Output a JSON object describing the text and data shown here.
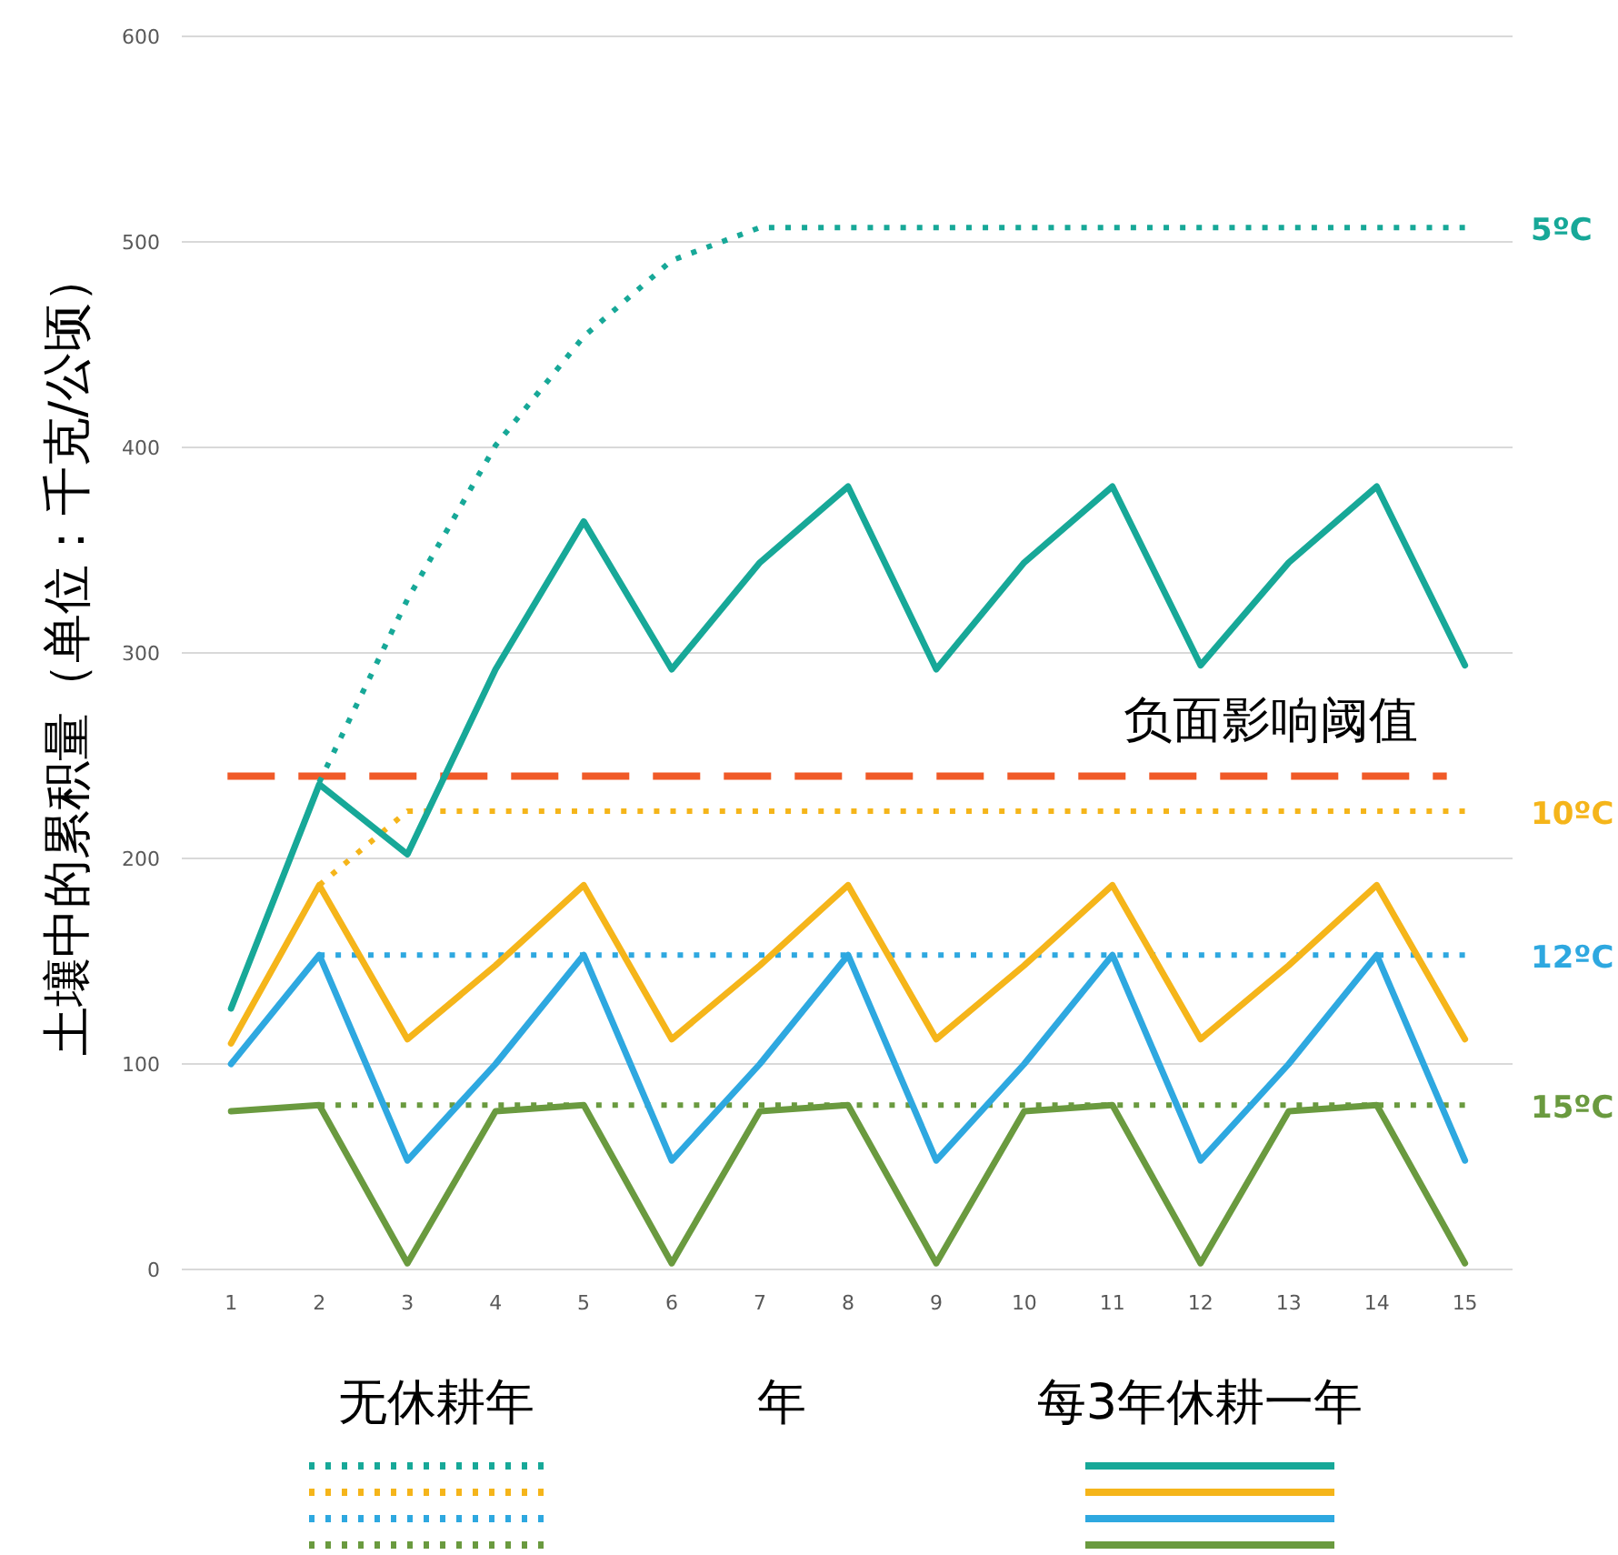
{
  "chart_data": {
    "type": "line",
    "xlabel": "年",
    "ylabel": "土壤中的累积量（单位：千克/公顷）",
    "x": [
      1,
      2,
      3,
      4,
      5,
      6,
      7,
      8,
      9,
      10,
      11,
      12,
      13,
      14,
      15
    ],
    "xlim": [
      0.44,
      15.54
    ],
    "xticks": [
      1,
      2,
      3,
      4,
      5,
      6,
      7,
      8,
      9,
      10,
      11,
      12,
      13,
      14,
      15
    ],
    "ylim": [
      0,
      600
    ],
    "yticks": [
      0,
      100,
      200,
      300,
      400,
      500,
      600
    ],
    "grid": "y",
    "marker": "none",
    "series": [
      {
        "name": "5ºC",
        "color": "#17a898",
        "line_style": "dotted",
        "values": [
          null,
          237,
          326,
          401,
          454,
          491,
          507,
          507,
          507,
          507,
          507,
          507,
          507,
          507,
          507
        ]
      },
      {
        "name": "10ºC",
        "color": "#f5b51a",
        "line_style": "dotted",
        "values": [
          null,
          187,
          223,
          223,
          223,
          223,
          223,
          223,
          223,
          223,
          223,
          223,
          223,
          223,
          223
        ]
      },
      {
        "name": "12ºC",
        "color": "#2ea8e0",
        "line_style": "dotted",
        "values": [
          null,
          153,
          153,
          153,
          153,
          153,
          153,
          153,
          153,
          153,
          153,
          153,
          153,
          153,
          153
        ]
      },
      {
        "name": "15ºC",
        "color": "#6a9a3f",
        "line_style": "dotted",
        "values": [
          null,
          80,
          80,
          80,
          80,
          80,
          80,
          80,
          80,
          80,
          80,
          80,
          80,
          80,
          80
        ]
      },
      {
        "color": "#17a898",
        "line_style": "solid",
        "values": [
          127,
          236,
          202,
          292,
          364,
          292,
          344,
          381,
          292,
          344,
          381,
          294,
          344,
          381,
          294
        ]
      },
      {
        "color": "#f5b51a",
        "line_style": "solid",
        "values": [
          110,
          187,
          112,
          148,
          187,
          112,
          148,
          187,
          112,
          148,
          187,
          112,
          148,
          187,
          112
        ]
      },
      {
        "color": "#2ea8e0",
        "line_style": "solid",
        "values": [
          100,
          153,
          53,
          100,
          153,
          53,
          100,
          153,
          53,
          100,
          153,
          53,
          100,
          153,
          53
        ]
      },
      {
        "color": "#6a9a3f",
        "line_style": "solid",
        "values": [
          77,
          80,
          3,
          77,
          80,
          3,
          77,
          80,
          3,
          77,
          80,
          3,
          77,
          80,
          3
        ]
      }
    ],
    "ref_lines": [
      {
        "axis": "y",
        "value": 240,
        "label": "负面影响阈值",
        "color": "#f05a28",
        "line_style": "dashed"
      }
    ],
    "annotations": [
      "无休耕年",
      "每3年休耕一年"
    ]
  }
}
